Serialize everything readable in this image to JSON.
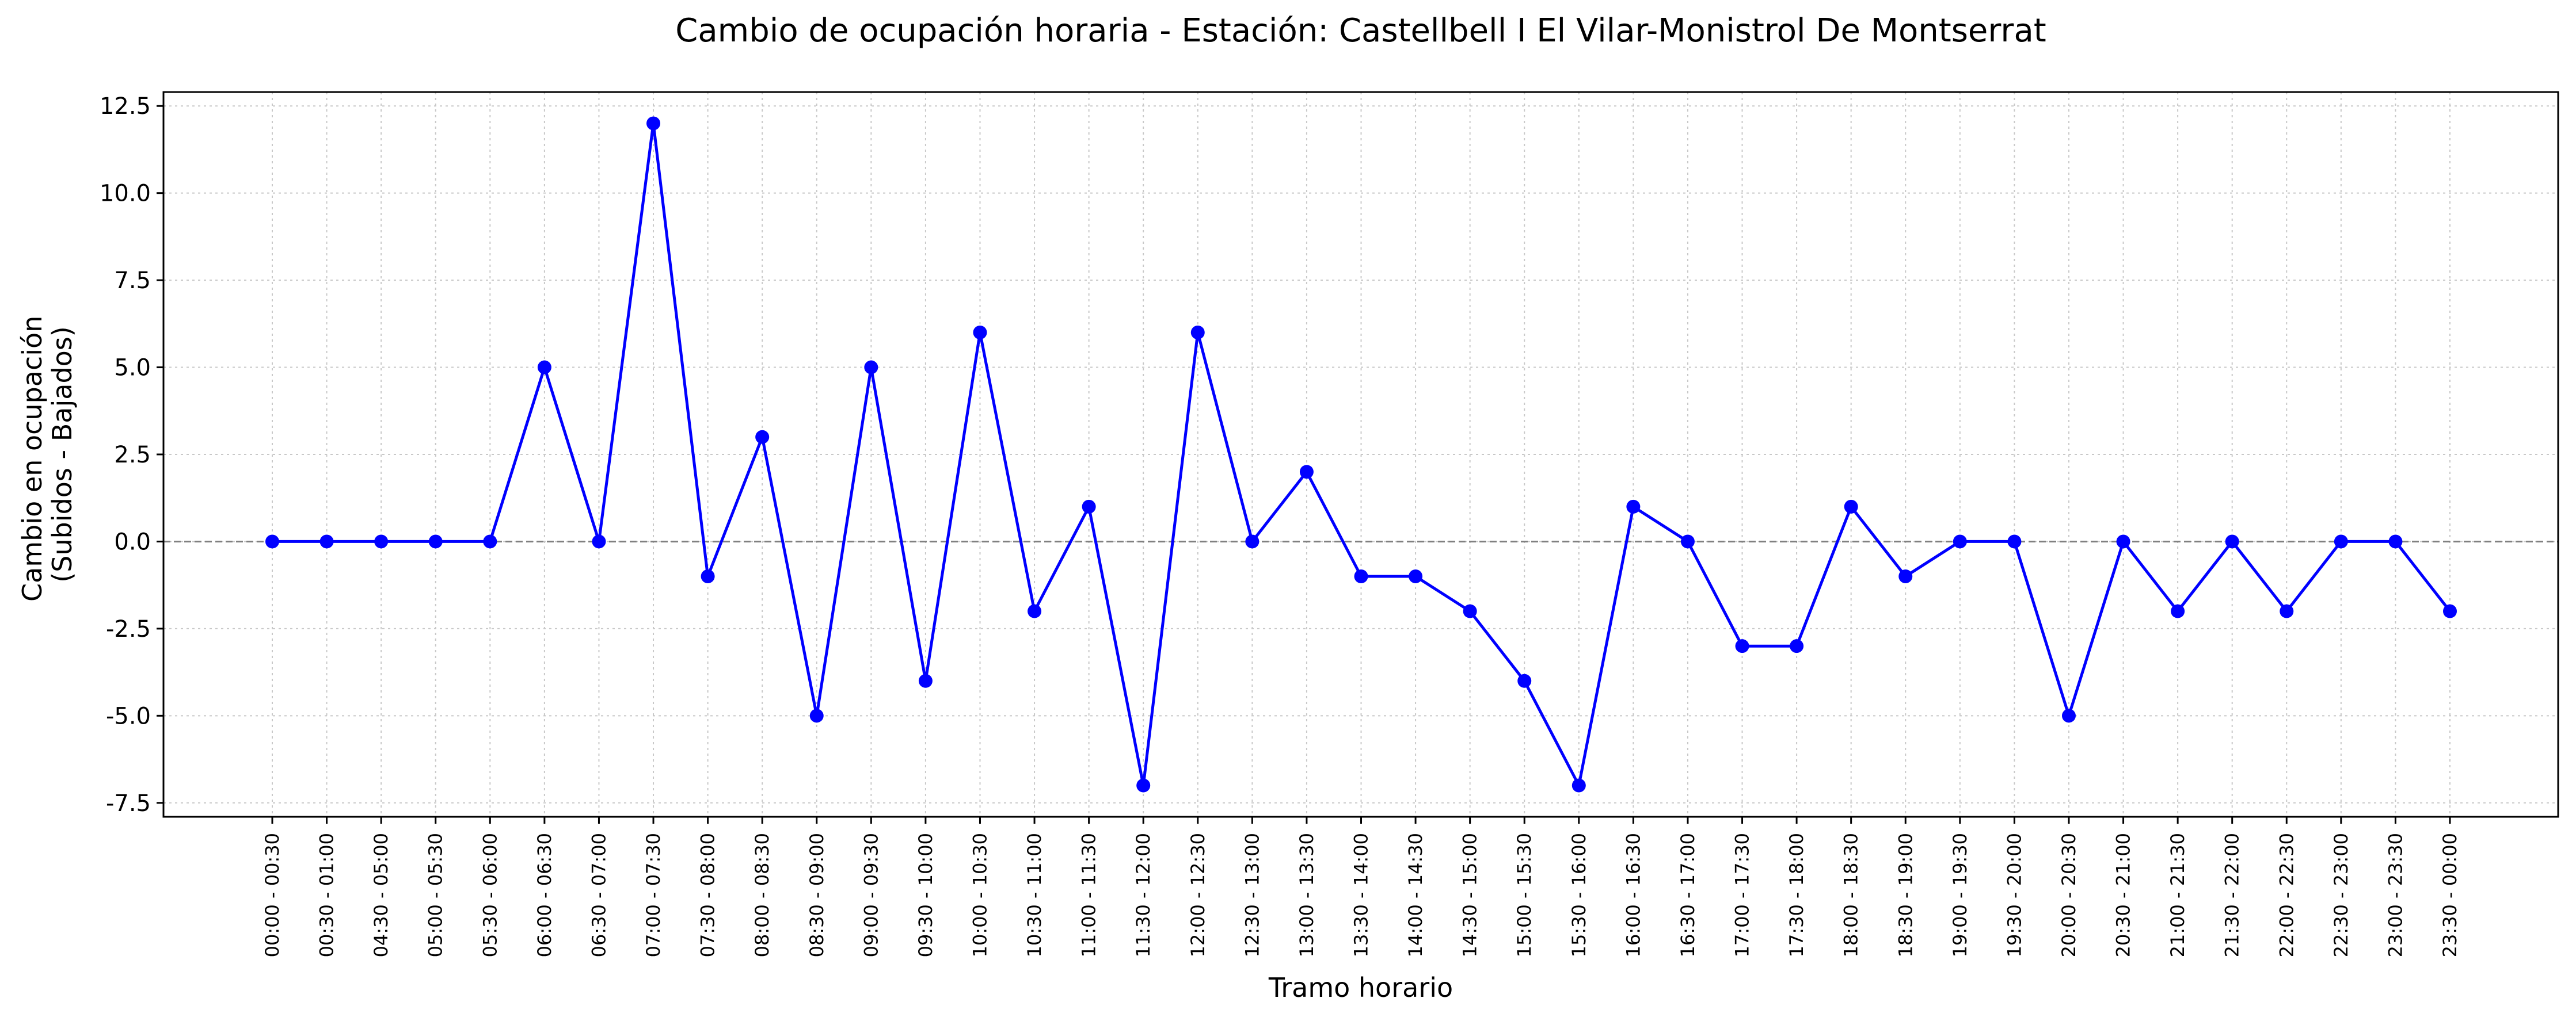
{
  "chart_data": {
    "type": "line",
    "title": "Cambio de ocupación horaria - Estación: Castellbell I El Vilar-Monistrol De Montserrat",
    "xlabel": "Tramo horario",
    "ylabel": [
      "Cambio en ocupación",
      "(Subidos - Bajados)"
    ],
    "ylim": [
      -7.9,
      12.9
    ],
    "yticks": [
      "-7.5",
      "-5.0",
      "-2.5",
      "0.0",
      "2.5",
      "5.0",
      "7.5",
      "10.0",
      "12.5"
    ],
    "ytick_values": [
      -7.5,
      -5.0,
      -2.5,
      0.0,
      2.5,
      5.0,
      7.5,
      10.0,
      12.5
    ],
    "grid": true,
    "zero_line": true,
    "legend": "none",
    "series": [
      {
        "color": "#0000ff",
        "marker": "circle",
        "values": [
          0,
          0,
          0,
          0,
          0,
          5,
          0,
          12,
          -1,
          3,
          -5,
          5,
          -4,
          6,
          -2,
          1,
          -7,
          6,
          0,
          2,
          -1,
          -1,
          -2,
          -4,
          -7,
          1,
          0,
          -3,
          -3,
          1,
          -1,
          0,
          0,
          -5,
          0,
          -2,
          0,
          -2,
          0,
          0,
          -2
        ]
      }
    ],
    "categories": [
      "00:00 - 00:30",
      "00:30 - 01:00",
      "04:30 - 05:00",
      "05:00 - 05:30",
      "05:30 - 06:00",
      "06:00 - 06:30",
      "06:30 - 07:00",
      "07:00 - 07:30",
      "07:30 - 08:00",
      "08:00 - 08:30",
      "08:30 - 09:00",
      "09:00 - 09:30",
      "09:30 - 10:00",
      "10:00 - 10:30",
      "10:30 - 11:00",
      "11:00 - 11:30",
      "11:30 - 12:00",
      "12:00 - 12:30",
      "12:30 - 13:00",
      "13:00 - 13:30",
      "13:30 - 14:00",
      "14:00 - 14:30",
      "14:30 - 15:00",
      "15:00 - 15:30",
      "15:30 - 16:00",
      "16:00 - 16:30",
      "16:30 - 17:00",
      "17:00 - 17:30",
      "17:30 - 18:00",
      "18:00 - 18:30",
      "18:30 - 19:00",
      "19:00 - 19:30",
      "19:30 - 20:00",
      "20:00 - 20:30",
      "20:30 - 21:00",
      "21:00 - 21:30",
      "21:30 - 22:00",
      "22:00 - 22:30",
      "22:30 - 23:00",
      "23:00 - 23:30",
      "23:30 - 00:00"
    ]
  }
}
